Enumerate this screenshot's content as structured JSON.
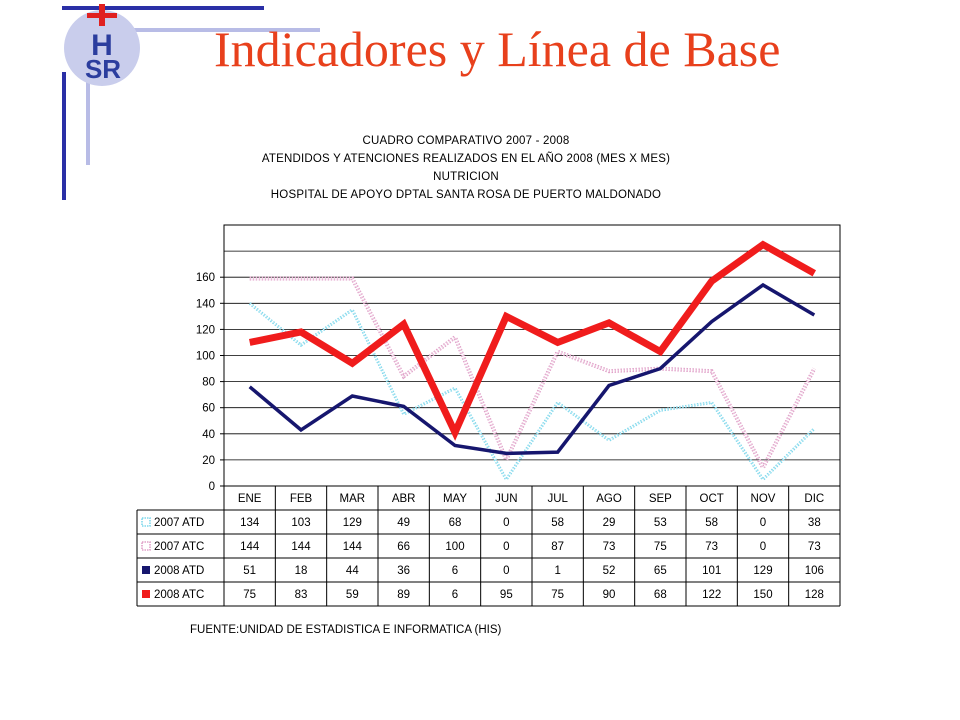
{
  "slide": {
    "title": "Indicadores y Línea de Base",
    "title_color": "#e8401c",
    "logo_text": {
      "top": "H",
      "bottom": "SR"
    }
  },
  "colors": {
    "logo_circle": "#c9cdec",
    "logo_letters": "#2b3d9e",
    "logo_cross": "#e02020",
    "frame_dark": "#2a2fa6",
    "frame_light": "#b8bce6"
  },
  "chart_data": {
    "type": "line",
    "title_lines": [
      "CUADRO COMPARATIVO 2007 - 2008",
      "ATENDIDOS Y ATENCIONES  REALIZADOS EN  EL AÑO 2008 (MES X MES)",
      "NUTRICION",
      "HOSPITAL DE APOYO DPTAL SANTA ROSA DE PUERTO MALDONADO"
    ],
    "categories": [
      "ENE",
      "FEB",
      "MAR",
      "ABR",
      "MAY",
      "JUN",
      "JUL",
      "AGO",
      "SEP",
      "OCT",
      "NOV",
      "DIC"
    ],
    "y_ticks": [
      0,
      20,
      40,
      60,
      80,
      100,
      120,
      140,
      160
    ],
    "ylim": [
      0,
      200
    ],
    "grid": true,
    "series": [
      {
        "name": "2007 ATD",
        "color": "#7fd8ec",
        "style": "dotted",
        "width": 3,
        "table_values": [
          134,
          103,
          129,
          49,
          68,
          0,
          58,
          29,
          53,
          58,
          0,
          38
        ],
        "plotted_values": [
          140,
          108,
          135,
          55,
          75,
          5,
          64,
          35,
          58,
          64,
          5,
          44
        ]
      },
      {
        "name": "2007 ATC",
        "color": "#e0a0c8",
        "style": "dotted",
        "width": 4,
        "table_values": [
          144,
          144,
          144,
          66,
          100,
          0,
          87,
          73,
          75,
          73,
          0,
          73
        ],
        "plotted_values": [
          159,
          159,
          159,
          84,
          114,
          20,
          103,
          88,
          90,
          88,
          14,
          90
        ]
      },
      {
        "name": "2008 ATD",
        "color": "#16166e",
        "style": "solid",
        "width": 3.5,
        "table_values": [
          51,
          18,
          44,
          36,
          6,
          0,
          1,
          52,
          65,
          101,
          129,
          106
        ],
        "plotted_values": [
          76,
          43,
          69,
          61,
          31,
          25,
          26,
          77,
          90,
          126,
          154,
          131
        ]
      },
      {
        "name": "2008 ATC",
        "color": "#f01c1c",
        "style": "solid",
        "width": 7,
        "table_values": [
          75,
          83,
          59,
          89,
          6,
          95,
          75,
          90,
          68,
          122,
          150,
          128
        ],
        "plotted_values": [
          110,
          118,
          94,
          124,
          41,
          130,
          110,
          125,
          103,
          157,
          185,
          163
        ]
      }
    ],
    "source": "FUENTE:UNIDAD DE ESTADISTICA E INFORMATICA (HIS)"
  }
}
